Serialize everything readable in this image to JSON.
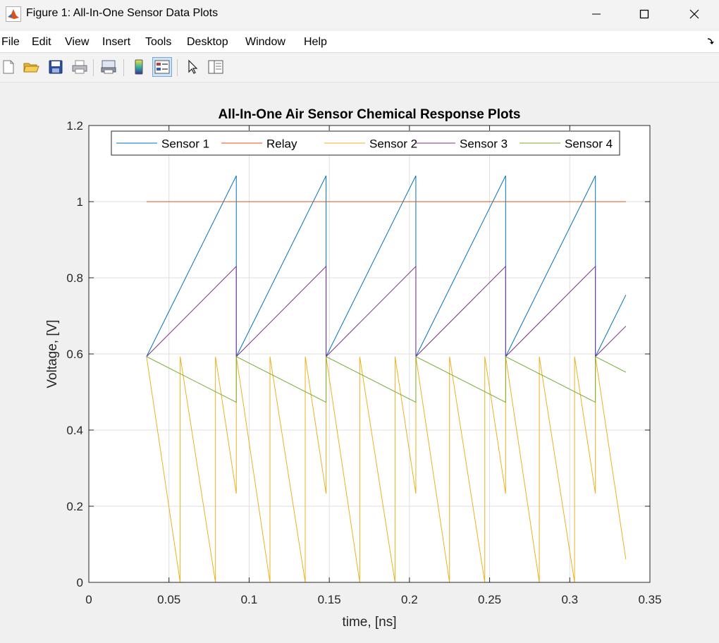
{
  "window": {
    "title": "Figure 1: All-In-One Sensor Data Plots"
  },
  "menu": [
    "File",
    "Edit",
    "View",
    "Insert",
    "Tools",
    "Desktop",
    "Window",
    "Help"
  ],
  "toolbar": [
    "new-figure",
    "open-file",
    "save",
    "print",
    "print-preview",
    "colorbar",
    "legend",
    "select-pointer",
    "property-inspector"
  ],
  "colors": {
    "sensor1": "#0072BD",
    "relay": "#D95319",
    "sensor2": "#EDB120",
    "sensor3": "#7E2F8E",
    "sensor4": "#77AC30"
  },
  "chart_data": {
    "type": "line",
    "title": "All-In-One Air Sensor Chemical Response Plots",
    "xlabel": "time, [ns]",
    "ylabel": "Voltage, [V]",
    "xlim": [
      0,
      0.35
    ],
    "ylim": [
      0,
      1.2
    ],
    "xticks": [
      "0",
      "0.05",
      "0.1",
      "0.15",
      "0.2",
      "0.25",
      "0.3",
      "0.35"
    ],
    "yticks": [
      "0",
      "0.2",
      "0.4",
      "0.6",
      "0.8",
      "1",
      "1.2"
    ],
    "grid": true,
    "legend": "top, horizontal",
    "series": [
      {
        "name": "Sensor 1",
        "x": [
          0.036,
          0.092,
          0.092,
          0.148,
          0.148,
          0.204,
          0.204,
          0.26,
          0.26,
          0.316,
          0.316,
          0.335
        ],
        "y": [
          0.593,
          1.068,
          0.593,
          1.068,
          0.593,
          1.068,
          0.593,
          1.068,
          0.593,
          1.068,
          0.593,
          0.755
        ]
      },
      {
        "name": "Relay",
        "x": [
          0.036,
          0.335
        ],
        "y": [
          1.0,
          1.0
        ]
      },
      {
        "name": "Sensor 2",
        "x": [
          0.036,
          0.057,
          0.057,
          0.079,
          0.079,
          0.092,
          0.092,
          0.113,
          0.113,
          0.135,
          0.135,
          0.148,
          0.148,
          0.169,
          0.169,
          0.191,
          0.191,
          0.204,
          0.204,
          0.225,
          0.225,
          0.247,
          0.247,
          0.26,
          0.26,
          0.281,
          0.281,
          0.303,
          0.303,
          0.316,
          0.316,
          0.335
        ],
        "y": [
          0.593,
          0.0,
          0.593,
          0.0,
          0.593,
          0.233,
          0.593,
          0.0,
          0.593,
          0.0,
          0.593,
          0.233,
          0.593,
          0.0,
          0.593,
          0.0,
          0.593,
          0.233,
          0.593,
          0.0,
          0.593,
          0.0,
          0.593,
          0.233,
          0.593,
          0.0,
          0.593,
          0.0,
          0.593,
          0.233,
          0.593,
          0.06
        ]
      },
      {
        "name": "Sensor 3",
        "x": [
          0.036,
          0.092,
          0.092,
          0.148,
          0.148,
          0.204,
          0.204,
          0.26,
          0.26,
          0.316,
          0.316,
          0.335
        ],
        "y": [
          0.593,
          0.83,
          0.593,
          0.83,
          0.593,
          0.83,
          0.593,
          0.83,
          0.593,
          0.83,
          0.593,
          0.673
        ]
      },
      {
        "name": "Sensor 4",
        "x": [
          0.036,
          0.092,
          0.092,
          0.148,
          0.148,
          0.204,
          0.204,
          0.26,
          0.26,
          0.316,
          0.316,
          0.335
        ],
        "y": [
          0.593,
          0.473,
          0.593,
          0.473,
          0.593,
          0.473,
          0.593,
          0.473,
          0.593,
          0.473,
          0.593,
          0.552
        ]
      }
    ]
  }
}
